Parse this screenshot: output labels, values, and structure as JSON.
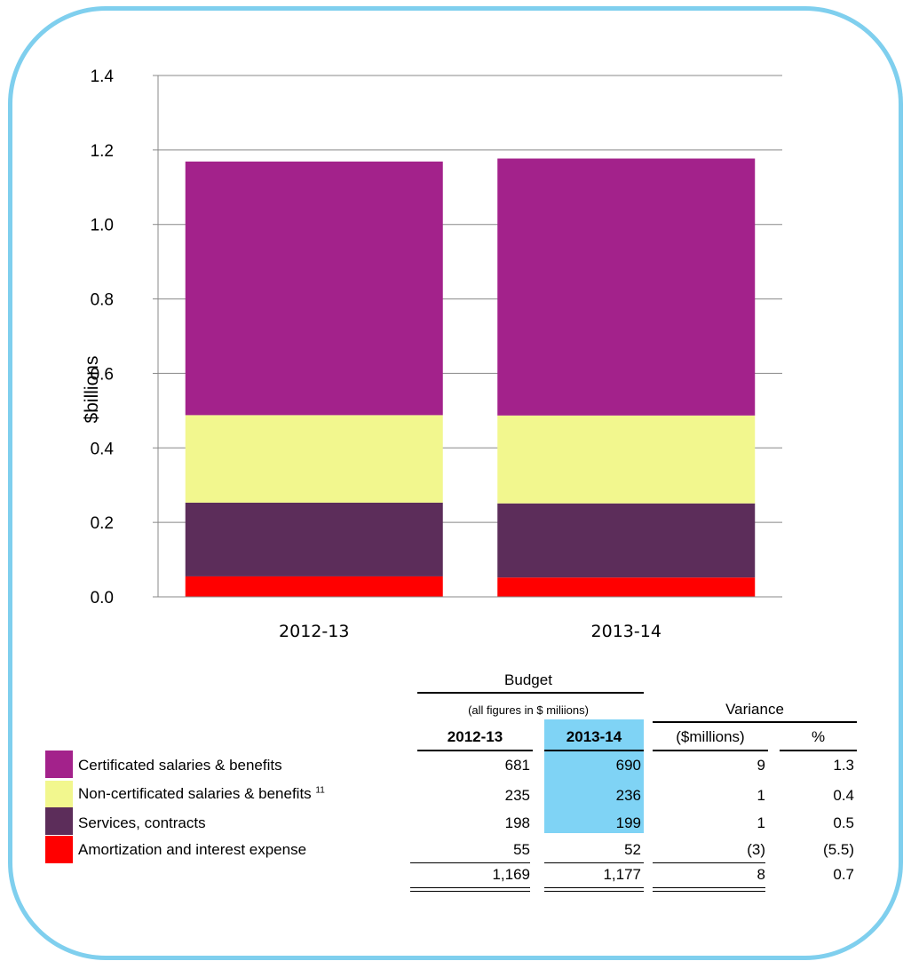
{
  "chart_data": {
    "type": "bar",
    "stacked": true,
    "categories": [
      "2012-13",
      "2013-14"
    ],
    "series": [
      {
        "name": "Amortization and interest expense",
        "color": "#ff0000",
        "values": [
          0.055,
          0.052
        ]
      },
      {
        "name": "Services, contracts",
        "color": "#5c2d5a",
        "values": [
          0.198,
          0.199
        ]
      },
      {
        "name": "Non-certificated salaries & benefits",
        "color": "#f2f78e",
        "values": [
          0.235,
          0.236
        ]
      },
      {
        "name": "Certificated salaries & benefits",
        "color": "#a3228b",
        "values": [
          0.681,
          0.69
        ]
      }
    ],
    "ylabel": "$billions",
    "ylim": [
      0,
      1.4
    ],
    "yticks": [
      "0.0",
      "0.2",
      "0.4",
      "0.6",
      "0.8",
      "1.0",
      "1.2",
      "1.4"
    ],
    "grid": true
  },
  "table": {
    "budget_header": "Budget",
    "budget_note": "(all figures in $ miliions)",
    "variance_header": "Variance",
    "col_2012": "2012-13",
    "col_2013": "2013-14",
    "col_var_millions": "($millions)",
    "col_var_pct": "%",
    "highlight_color": "#7fd3f5",
    "rows": [
      {
        "label": "Certificated salaries & benefits",
        "footnote": "",
        "v2012": "681",
        "v2013": "690",
        "var": "9",
        "pct": "1.3"
      },
      {
        "label": "Non-certificated salaries & benefits",
        "footnote": "11",
        "v2012": "235",
        "v2013": "236",
        "var": "1",
        "pct": "0.4"
      },
      {
        "label": "Services, contracts",
        "footnote": "",
        "v2012": "198",
        "v2013": "199",
        "var": "1",
        "pct": "0.5"
      },
      {
        "label": "Amortization and interest expense",
        "footnote": "",
        "v2012": "55",
        "v2013": "52",
        "var": "(3)",
        "pct": "(5.5)"
      }
    ],
    "total": {
      "v2012": "1,169",
      "v2013": "1,177",
      "var": "8",
      "pct": "0.7"
    }
  }
}
